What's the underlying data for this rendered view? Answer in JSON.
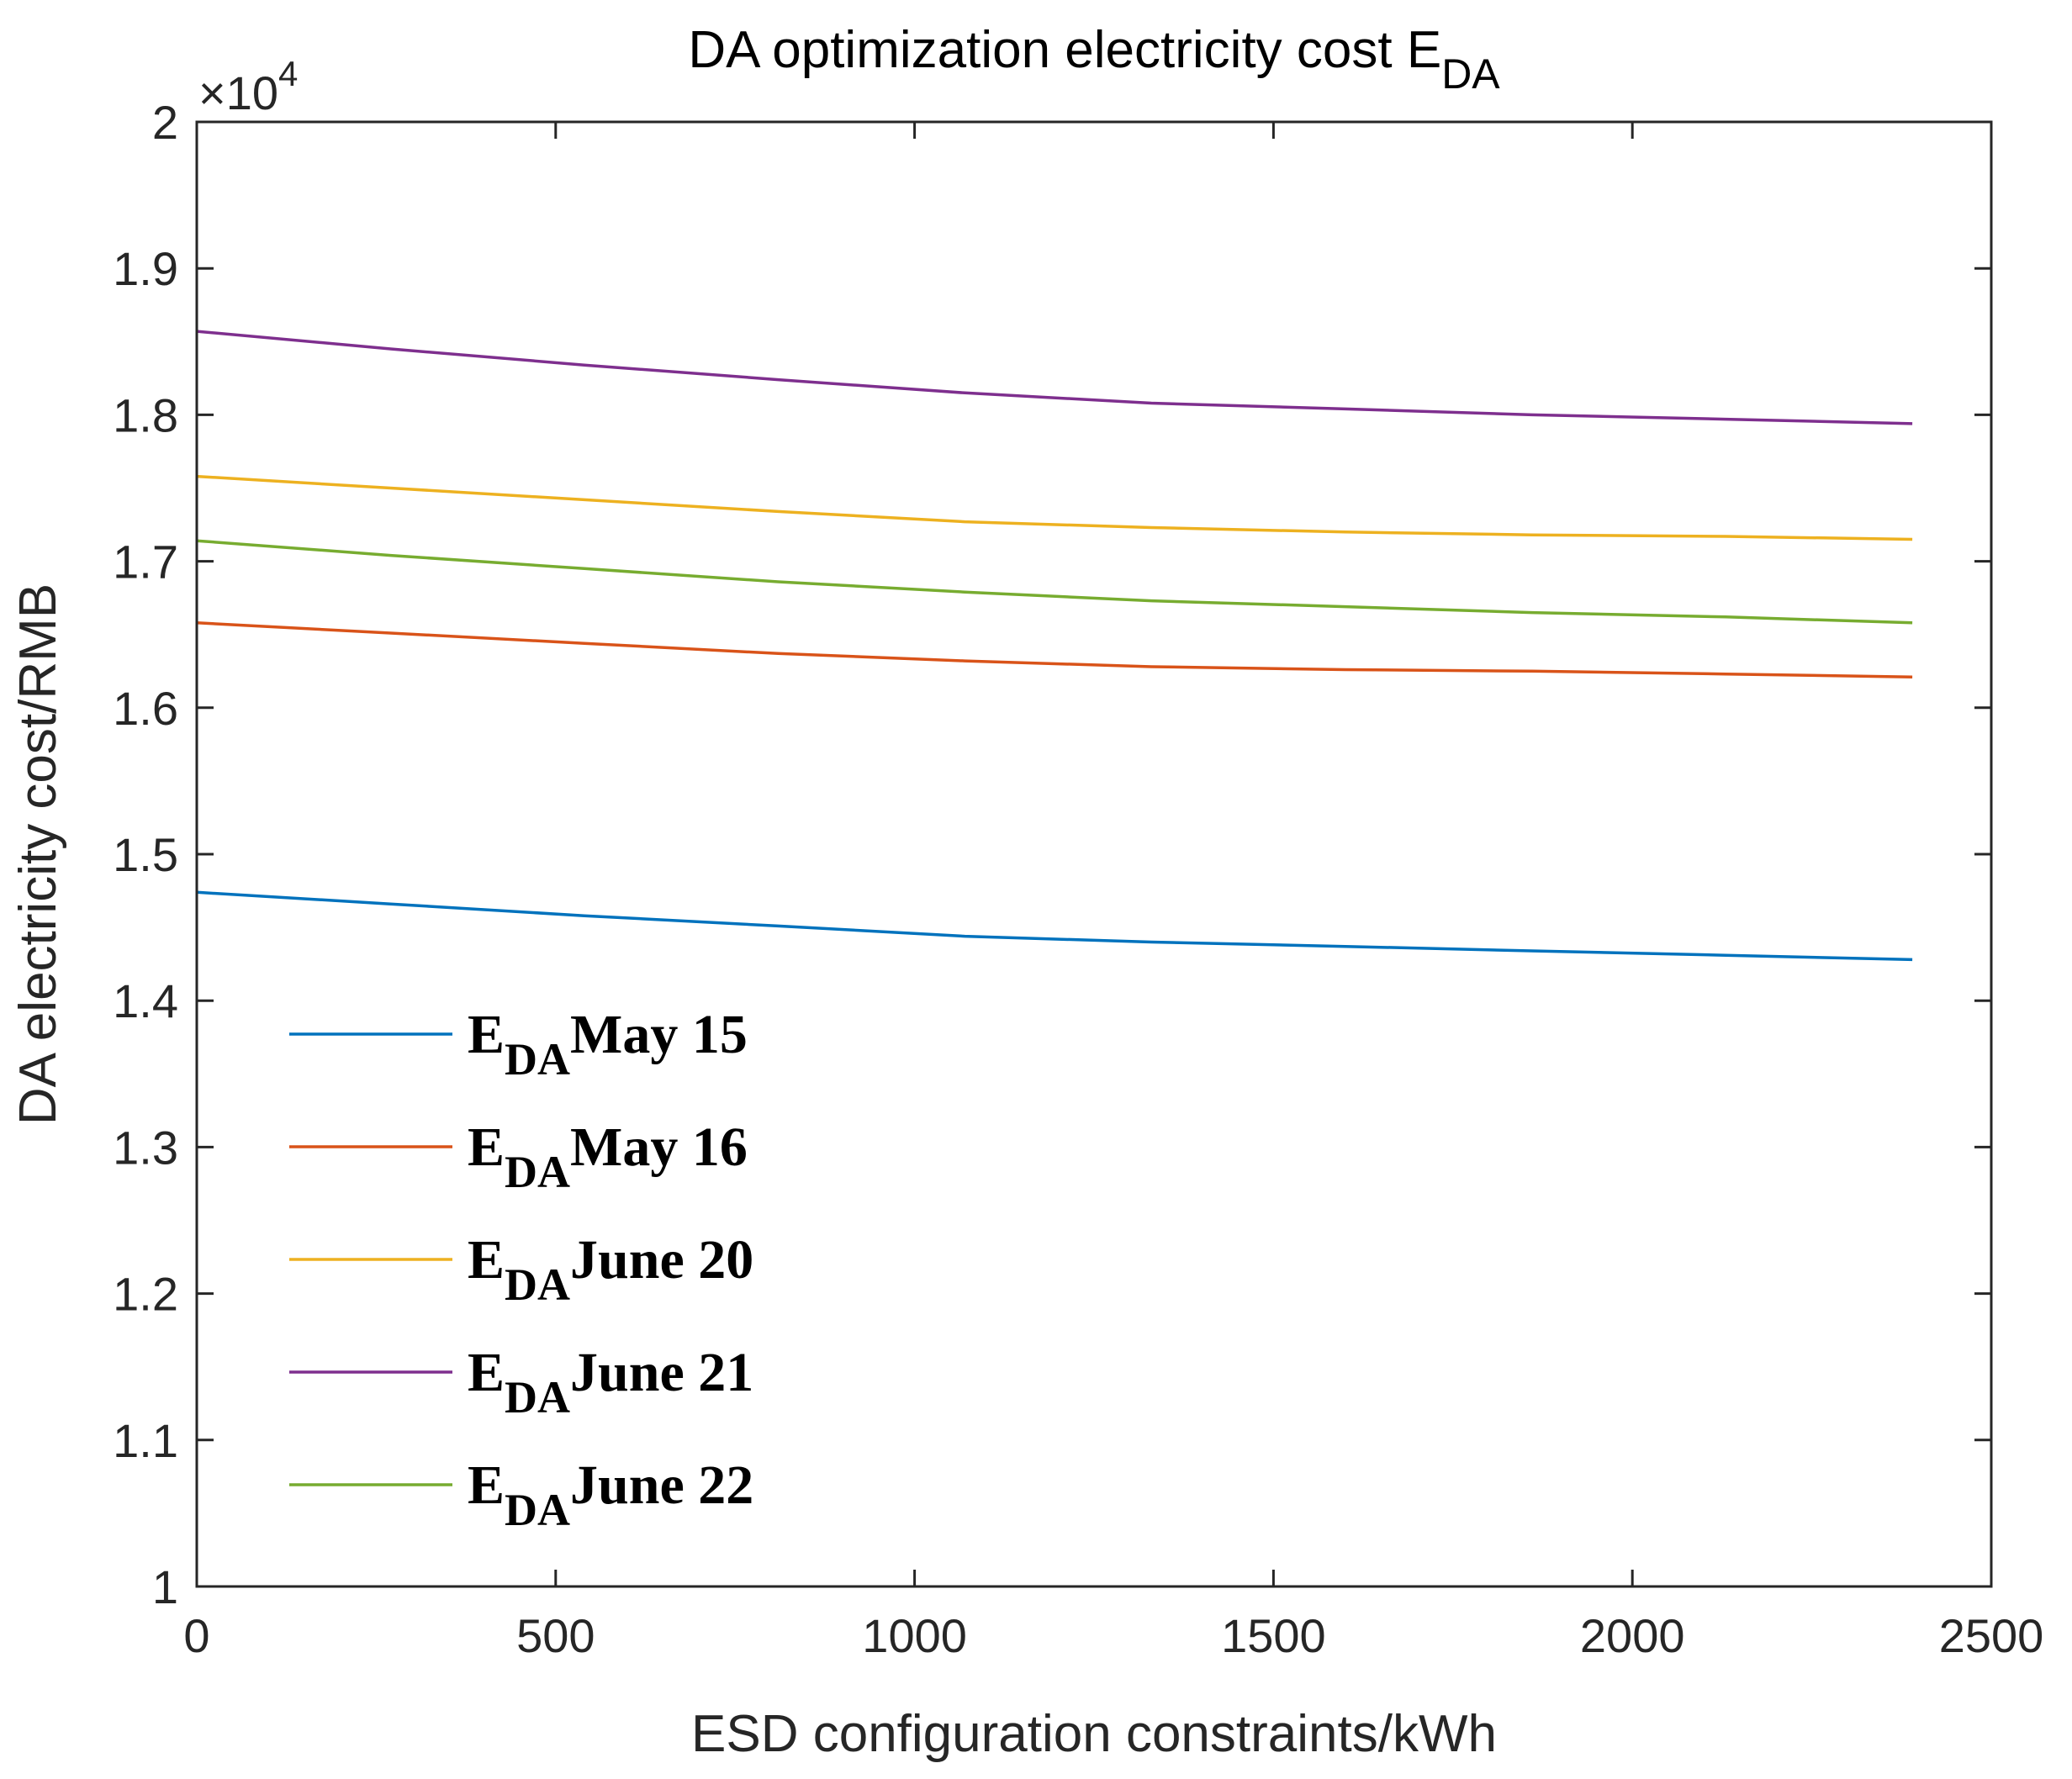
{
  "chart_data": {
    "type": "line",
    "title": "DA optimization electricity cost E",
    "title_subscript": "DA",
    "xlabel": "ESD configuration constraints/kWh",
    "ylabel": "DA electricity cost/RMB",
    "xlim": [
      0,
      2500
    ],
    "ylim": [
      1,
      2
    ],
    "y_multiplier_base": "×10",
    "y_multiplier_exponent": "4",
    "x_ticks": [
      0,
      500,
      1000,
      1500,
      2000,
      2500
    ],
    "x_tick_labels": [
      "0",
      "500",
      "1000",
      "1500",
      "2000",
      "2500"
    ],
    "y_ticks": [
      1,
      1.1,
      1.2,
      1.3,
      1.4,
      1.5,
      1.6,
      1.7,
      1.8,
      1.9,
      2
    ],
    "y_tick_labels": [
      "1",
      "1.1",
      "1.2",
      "1.3",
      "1.4",
      "1.5",
      "1.6",
      "1.7",
      "1.8",
      "1.9",
      "2"
    ],
    "grid": false,
    "legend_position": "bottom-left",
    "x": [
      0,
      270,
      540,
      810,
      1070,
      1330,
      1600,
      1860,
      2130,
      2390
    ],
    "series": [
      {
        "name": "May 15",
        "legend_prefix": "E",
        "legend_subscript": "DA",
        "color": "#0072BD",
        "values": [
          1.474,
          1.466,
          1.458,
          1.451,
          1.444,
          1.44,
          1.437,
          1.434,
          1.431,
          1.428
        ]
      },
      {
        "name": "May 16",
        "legend_prefix": "E",
        "legend_subscript": "DA",
        "color": "#D95319",
        "values": [
          1.658,
          1.651,
          1.644,
          1.637,
          1.632,
          1.628,
          1.626,
          1.625,
          1.623,
          1.621
        ]
      },
      {
        "name": "June 20",
        "legend_prefix": "E",
        "legend_subscript": "DA",
        "color": "#EDB120",
        "values": [
          1.758,
          1.75,
          1.742,
          1.734,
          1.727,
          1.723,
          1.72,
          1.718,
          1.717,
          1.715
        ]
      },
      {
        "name": "June 21",
        "legend_prefix": "E",
        "legend_subscript": "DA",
        "color": "#7E2F8E",
        "values": [
          1.857,
          1.845,
          1.834,
          1.824,
          1.815,
          1.808,
          1.804,
          1.8,
          1.797,
          1.794
        ]
      },
      {
        "name": "June 22",
        "legend_prefix": "E",
        "legend_subscript": "DA",
        "color": "#77AC30",
        "values": [
          1.714,
          1.704,
          1.695,
          1.686,
          1.679,
          1.673,
          1.669,
          1.665,
          1.662,
          1.658
        ]
      }
    ]
  }
}
